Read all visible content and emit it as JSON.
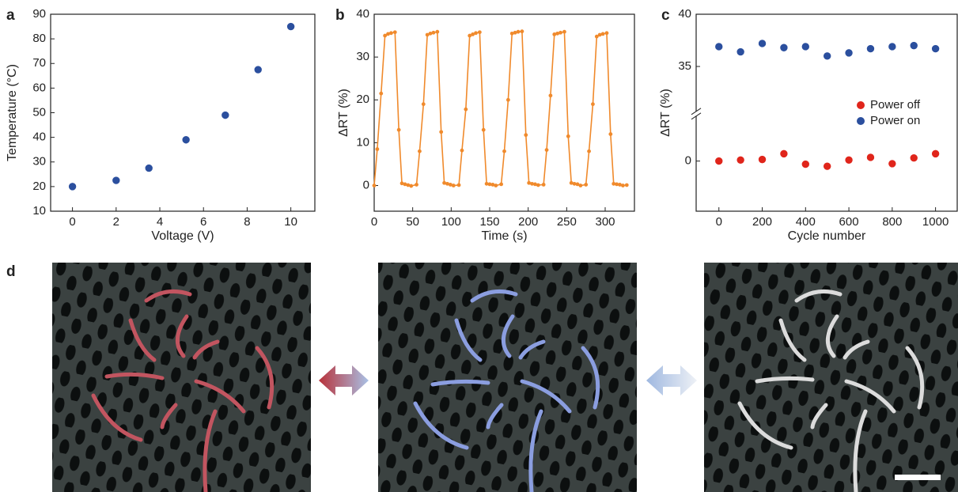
{
  "panel_labels": [
    "a",
    "b",
    "c",
    "d"
  ],
  "chart_data": [
    {
      "type": "scatter",
      "x_label": "Voltage (V)",
      "y_label": "Temperature (°C)",
      "x": [
        0,
        2,
        3.5,
        5.2,
        7,
        8.5,
        10
      ],
      "values": [
        20,
        22.5,
        27.5,
        39,
        49,
        67.5,
        85
      ],
      "color": "#2b4f9e",
      "xlim": [
        -1,
        11.1
      ],
      "xticks": [
        0,
        2,
        4,
        6,
        8,
        10
      ],
      "ylim": [
        10,
        90
      ],
      "yticks": [
        10,
        20,
        30,
        40,
        50,
        60,
        70,
        80,
        90
      ],
      "grid": false
    },
    {
      "type": "line",
      "x_label": "Time (s)",
      "y_label": "ΔRT (%)",
      "color": "#f08a2c",
      "x": [
        0,
        4,
        9,
        14,
        18,
        22,
        27,
        32,
        36,
        40,
        44,
        48,
        55,
        59,
        64,
        69,
        73,
        77,
        82,
        87,
        91,
        95,
        99,
        103,
        110,
        114,
        119,
        124,
        128,
        132,
        137,
        142,
        146,
        150,
        154,
        158,
        165,
        169,
        174,
        179,
        183,
        187,
        192,
        197,
        201,
        205,
        209,
        213,
        220,
        224,
        229,
        234,
        238,
        242,
        247,
        252,
        256,
        260,
        264,
        268,
        275,
        279,
        284,
        289,
        293,
        297,
        302,
        307,
        311,
        315,
        319,
        323,
        328
      ],
      "values": [
        0,
        8.5,
        21.5,
        35,
        35.4,
        35.6,
        35.8,
        13,
        0.5,
        0.3,
        0.1,
        -0.1,
        0.2,
        8,
        19,
        35.2,
        35.5,
        35.7,
        35.9,
        12.5,
        0.6,
        0.4,
        0.2,
        0,
        0.1,
        8.2,
        17.8,
        35,
        35.3,
        35.6,
        35.8,
        13,
        0.4,
        0.3,
        0.2,
        0,
        0.3,
        8,
        20,
        35.5,
        35.7,
        35.9,
        36,
        11.8,
        0.6,
        0.4,
        0.3,
        0.1,
        0.2,
        8.3,
        21,
        35.3,
        35.5,
        35.7,
        35.9,
        11.5,
        0.6,
        0.4,
        0.3,
        0,
        0.2,
        8,
        19,
        34.8,
        35.2,
        35.4,
        35.6,
        12,
        0.4,
        0.3,
        0.2,
        0,
        0.1
      ],
      "xlim": [
        0,
        338
      ],
      "xticks": [
        0,
        50,
        100,
        150,
        200,
        250,
        300
      ],
      "ylim": [
        -6,
        40
      ],
      "yticks": [
        0,
        10,
        20,
        30,
        40
      ],
      "grid": false
    },
    {
      "type": "scatter",
      "x_label": "Cycle number",
      "y_label": "ΔRT (%)",
      "x": [
        0,
        100,
        200,
        300,
        400,
        500,
        600,
        700,
        800,
        900,
        1000
      ],
      "series": [
        {
          "name": "Power off",
          "color": "#e0251b",
          "values": [
            0,
            0.1,
            0.15,
            0.7,
            -0.3,
            -0.5,
            0.1,
            0.35,
            -0.25,
            0.3,
            0.7
          ]
        },
        {
          "name": "Power on",
          "color": "#2b4f9e",
          "values": [
            36.9,
            36.4,
            37.2,
            36.8,
            36.9,
            36.0,
            36.3,
            36.7,
            36.9,
            37.0,
            36.7
          ]
        }
      ],
      "xlim": [
        -105,
        1100
      ],
      "xticks": [
        0,
        200,
        400,
        600,
        800,
        1000
      ],
      "ylim": [
        -4.8,
        40
      ],
      "ybreak": [
        4.3,
        30.7
      ],
      "yticks": [
        0,
        35,
        40
      ],
      "grid": false,
      "legend": "right"
    }
  ]
}
